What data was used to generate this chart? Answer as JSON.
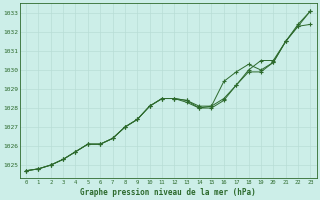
{
  "title": "Graphe pression niveau de la mer (hPa)",
  "background_color": "#cceee8",
  "grid_color": "#b8ddd6",
  "line_color": "#2d6a2d",
  "marker_color": "#2d6a2d",
  "x_ticks": [
    0,
    1,
    2,
    3,
    4,
    5,
    6,
    7,
    8,
    9,
    10,
    11,
    12,
    13,
    14,
    15,
    16,
    17,
    18,
    19,
    20,
    21,
    22,
    23
  ],
  "y_ticks": [
    1025,
    1026,
    1027,
    1028,
    1029,
    1030,
    1031,
    1032,
    1033
  ],
  "xlim": [
    -0.5,
    23.5
  ],
  "ylim": [
    1024.3,
    1033.5
  ],
  "series1": [
    1024.7,
    1024.8,
    1025.0,
    1025.3,
    1025.7,
    1026.1,
    1026.1,
    1026.4,
    1027.0,
    1027.4,
    1028.1,
    1028.5,
    1028.5,
    1028.4,
    1028.1,
    1028.1,
    1028.5,
    1029.2,
    1030.0,
    1030.5,
    1030.5,
    1031.5,
    1032.4,
    1033.1
  ],
  "series2": [
    1024.7,
    1024.8,
    1025.0,
    1025.3,
    1025.7,
    1026.1,
    1026.1,
    1026.4,
    1027.0,
    1027.4,
    1028.1,
    1028.5,
    1028.5,
    1028.4,
    1028.0,
    1028.1,
    1029.4,
    1029.9,
    1030.3,
    1030.0,
    1030.4,
    1031.5,
    1032.3,
    1033.1
  ],
  "series3": [
    1024.7,
    1024.8,
    1025.0,
    1025.3,
    1025.7,
    1026.1,
    1026.1,
    1026.4,
    1027.0,
    1027.4,
    1028.1,
    1028.5,
    1028.5,
    1028.3,
    1028.0,
    1028.0,
    1028.4,
    1029.2,
    1029.9,
    1029.9,
    1030.4,
    1031.5,
    1032.3,
    1032.4
  ]
}
